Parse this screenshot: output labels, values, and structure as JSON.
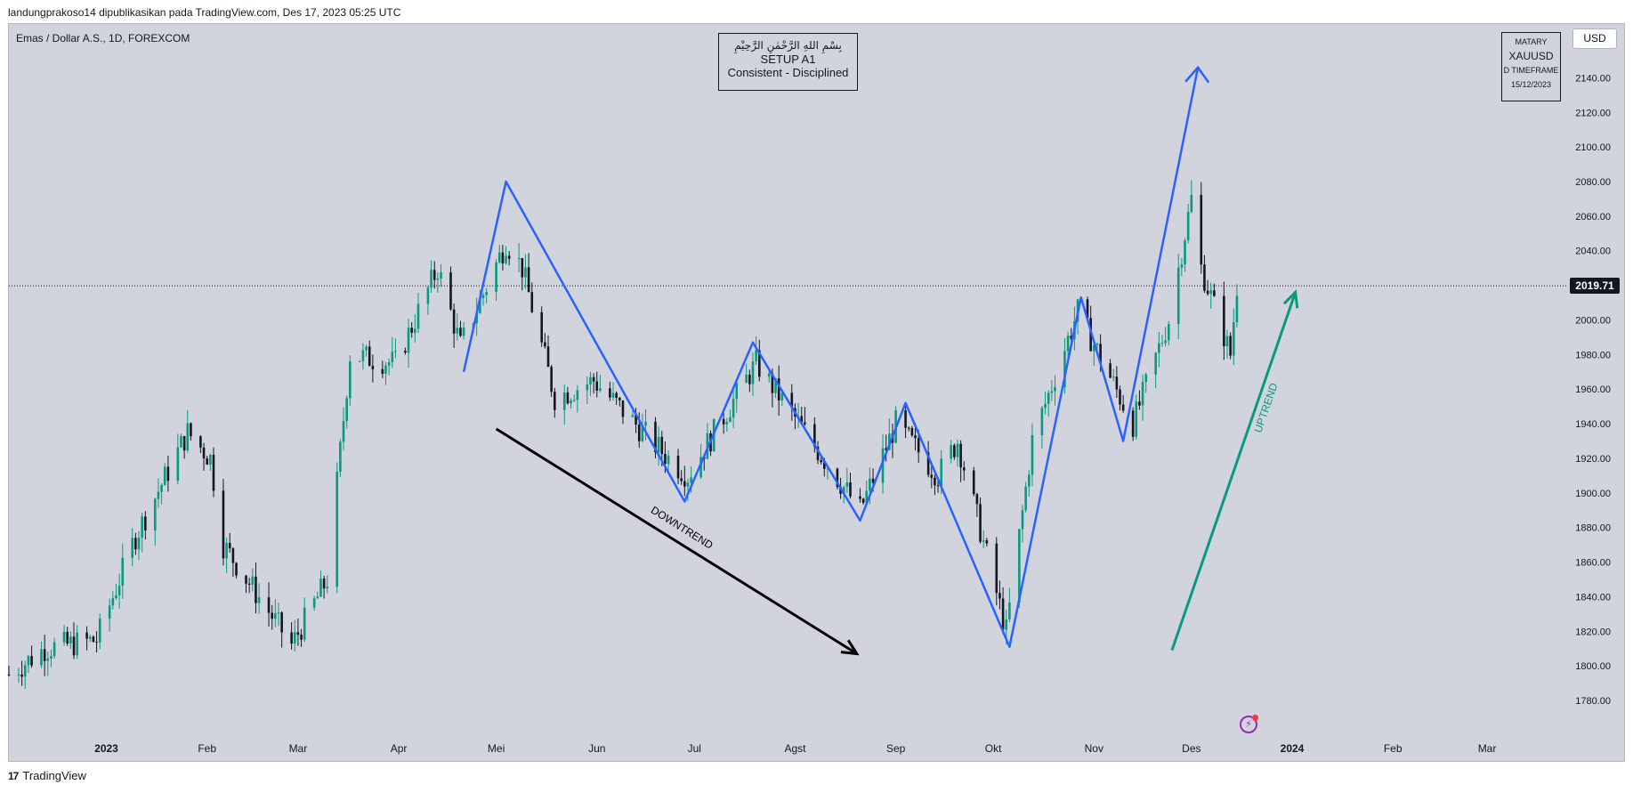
{
  "header": {
    "publication": "landungprakoso14 dipublikasikan pada TradingView.com, Des 17, 2023 05:25 UTC",
    "symbol": "Emas / Dollar A.S., 1D, FOREXCOM"
  },
  "note_box": {
    "line1": "بِسْمِ اللهِ الرَّحْمٰنِ الرَّحِيْمِ",
    "line2": "SETUP A1",
    "line3": "Consistent - Disciplined"
  },
  "card_box": {
    "brand": "MATARY",
    "symbol": "XAUUSD",
    "timeframe": "D TIMEFRAME",
    "date": "15/12/2023"
  },
  "currency_button": "USD",
  "current_price": "2019.71",
  "footer": {
    "logo": "17",
    "brand": "TradingView"
  },
  "colors": {
    "background": "#d1d4dc",
    "bull": "#089981",
    "bear": "#131722",
    "zigzag": "#2962ff",
    "uptrend": "#089981",
    "downtrend": "#000000"
  },
  "chart_data": {
    "type": "candlestick",
    "title": "",
    "ylabel": "",
    "ylim": [
      1765,
      2160
    ],
    "price_ticks": [
      1780,
      1800,
      1820,
      1840,
      1860,
      1880,
      1900,
      1920,
      1940,
      1960,
      1980,
      2000,
      2020,
      2040,
      2060,
      2080,
      2100,
      2120,
      2140
    ],
    "x_axis": {
      "range": [
        "2022-12-02",
        "2024-03-24"
      ],
      "labels": [
        {
          "label": "2023",
          "date": "2023-01-01",
          "bold": true
        },
        {
          "label": "Feb",
          "date": "2023-02-01"
        },
        {
          "label": "Mar",
          "date": "2023-03-01"
        },
        {
          "label": "Apr",
          "date": "2023-04-01"
        },
        {
          "label": "Mei",
          "date": "2023-05-01"
        },
        {
          "label": "Jun",
          "date": "2023-06-01"
        },
        {
          "label": "Jul",
          "date": "2023-07-01"
        },
        {
          "label": "Agst",
          "date": "2023-08-01"
        },
        {
          "label": "Sep",
          "date": "2023-09-01"
        },
        {
          "label": "Okt",
          "date": "2023-10-01"
        },
        {
          "label": "Nov",
          "date": "2023-11-01"
        },
        {
          "label": "Des",
          "date": "2023-12-01"
        },
        {
          "label": "2024",
          "date": "2024-01-01",
          "bold": true
        },
        {
          "label": "Feb",
          "date": "2024-02-01"
        },
        {
          "label": "Mar",
          "date": "2024-03-01"
        }
      ]
    },
    "price_path": [
      {
        "date": "2022-12-02",
        "price": 1795
      },
      {
        "date": "2022-12-13",
        "price": 1810
      },
      {
        "date": "2022-12-29",
        "price": 1815
      },
      {
        "date": "2023-01-10",
        "price": 1875
      },
      {
        "date": "2023-01-26",
        "price": 1935
      },
      {
        "date": "2023-02-02",
        "price": 1920
      },
      {
        "date": "2023-02-06",
        "price": 1870
      },
      {
        "date": "2023-02-27",
        "price": 1812
      },
      {
        "date": "2023-03-10",
        "price": 1850
      },
      {
        "date": "2023-03-17",
        "price": 1980
      },
      {
        "date": "2023-03-31",
        "price": 1975
      },
      {
        "date": "2023-04-13",
        "price": 2030
      },
      {
        "date": "2023-04-20",
        "price": 1985
      },
      {
        "date": "2023-05-04",
        "price": 2045
      },
      {
        "date": "2023-05-09",
        "price": 2030
      },
      {
        "date": "2023-05-19",
        "price": 1955
      },
      {
        "date": "2023-05-31",
        "price": 1965
      },
      {
        "date": "2023-06-23",
        "price": 1920
      },
      {
        "date": "2023-06-29",
        "price": 1910
      },
      {
        "date": "2023-07-20",
        "price": 1975
      },
      {
        "date": "2023-08-21",
        "price": 1890
      },
      {
        "date": "2023-09-01",
        "price": 1940
      },
      {
        "date": "2023-09-14",
        "price": 1910
      },
      {
        "date": "2023-09-20",
        "price": 1930
      },
      {
        "date": "2023-10-05",
        "price": 1820
      },
      {
        "date": "2023-10-13",
        "price": 1930
      },
      {
        "date": "2023-10-27",
        "price": 2005
      },
      {
        "date": "2023-11-13",
        "price": 1940
      },
      {
        "date": "2023-11-24",
        "price": 2000
      },
      {
        "date": "2023-12-01",
        "price": 2070
      },
      {
        "date": "2023-12-04",
        "price": 2030
      },
      {
        "date": "2023-12-13",
        "price": 1980
      },
      {
        "date": "2023-12-15",
        "price": 2019.71
      }
    ],
    "zigzag": [
      {
        "date": "2023-04-21",
        "price": 1970
      },
      {
        "date": "2023-05-04",
        "price": 2080
      },
      {
        "date": "2023-06-28",
        "price": 1895
      },
      {
        "date": "2023-07-19",
        "price": 1987
      },
      {
        "date": "2023-08-21",
        "price": 1884
      },
      {
        "date": "2023-09-04",
        "price": 1952
      },
      {
        "date": "2023-10-06",
        "price": 1811
      },
      {
        "date": "2023-10-28",
        "price": 2013
      },
      {
        "date": "2023-11-10",
        "price": 1930
      },
      {
        "date": "2023-12-03",
        "price": 2146
      }
    ],
    "annotations": [
      {
        "label": "DOWNTREND",
        "from": {
          "date": "2023-05-01",
          "price": 1937
        },
        "to": {
          "date": "2023-08-20",
          "price": 1807
        }
      },
      {
        "label": "UPTREND",
        "from": {
          "date": "2023-11-25",
          "price": 1809
        },
        "to": {
          "date": "2024-01-02",
          "price": 2016
        }
      }
    ]
  }
}
